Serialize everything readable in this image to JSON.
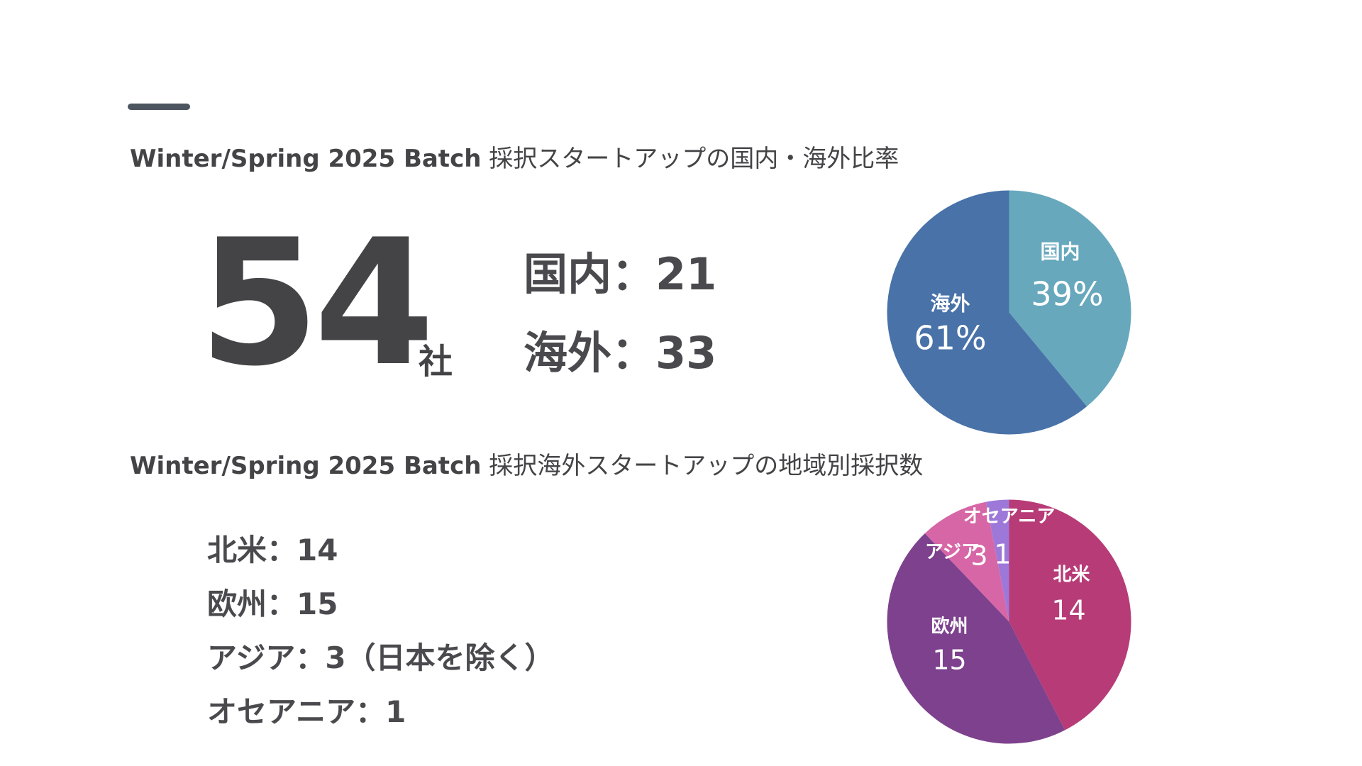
{
  "section1": {
    "title_em": "Winter/Spring 2025 Batch",
    "title_rest": " 採択スタートアップの国内・海外比率",
    "total": "54",
    "unit": "社",
    "domestic": "国内：21",
    "overseas": "海外：33"
  },
  "section2": {
    "title_em": "Winter/Spring 2025 Batch",
    "title_rest": " 採択海外スタートアップの地域別採択数",
    "regions": [
      "北米：14",
      "欧州：15",
      "アジア：3（日本を除く）",
      "オセアニア：1"
    ]
  },
  "colors": {
    "text": "#444447",
    "accent_bar": "#4c5560",
    "domestic": "#67a8bd",
    "overseas": "#4872a8",
    "north_america": "#b73b77",
    "europe": "#7d418d",
    "asia": "#d766a6",
    "oceania": "#9d78d8"
  },
  "chart_data": [
    {
      "type": "pie",
      "title": "",
      "slices": [
        {
          "label": "国内",
          "value": 39,
          "display": "39%",
          "color": "#67a8bd"
        },
        {
          "label": "海外",
          "value": 61,
          "display": "61%",
          "color": "#4872a8"
        }
      ]
    },
    {
      "type": "pie",
      "title": "",
      "slices": [
        {
          "label": "北米",
          "value": 14,
          "display": "14",
          "color": "#b73b77"
        },
        {
          "label": "欧州",
          "value": 15,
          "display": "15",
          "color": "#7d418d"
        },
        {
          "label": "アジア",
          "value": 3,
          "display": "3",
          "color": "#d766a6"
        },
        {
          "label": "オセアニア",
          "value": 1,
          "display": "1",
          "color": "#9d78d8"
        }
      ]
    }
  ]
}
